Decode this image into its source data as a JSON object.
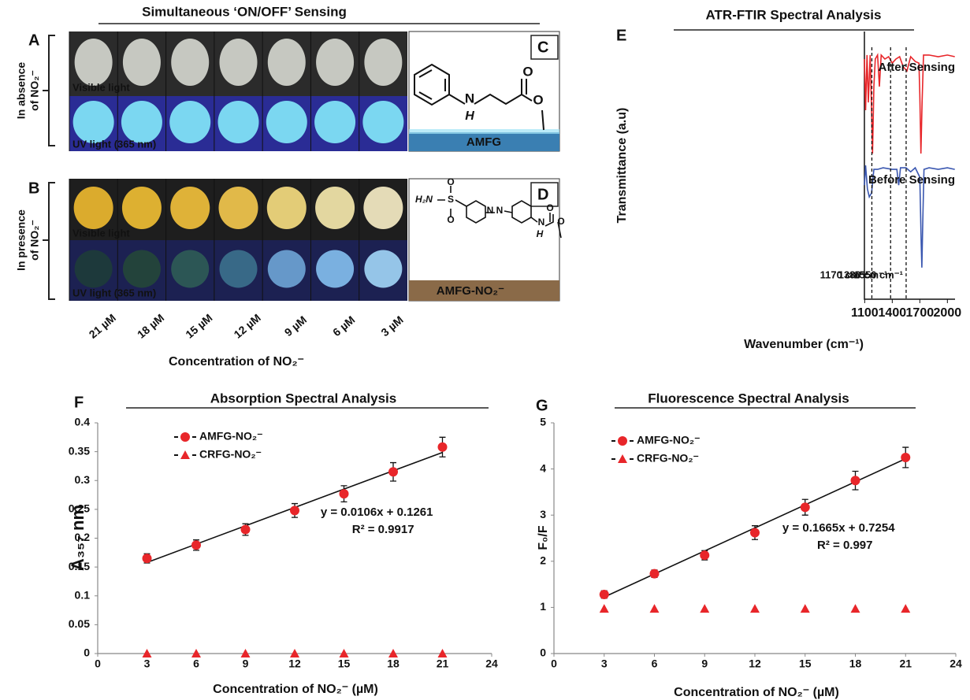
{
  "figure": {
    "panel_letters": [
      "A",
      "B",
      "C",
      "D",
      "E",
      "F",
      "G"
    ],
    "photo_title": "Simultaneous ‘ON/OFF’ Sensing",
    "row_labels": [
      [
        "In absence",
        "of NO₂⁻"
      ],
      [
        "In presence",
        "of NO₂⁻"
      ]
    ],
    "light_labels": [
      "Visible light",
      "UV light (365 nm)"
    ],
    "concentrations": [
      "21 µM",
      "18 µM",
      "15 µM",
      "12 µM",
      "9 µM",
      "6 µM",
      "3 µM"
    ],
    "concentration_label": "Concentration of NO₂⁻",
    "structures": {
      "c_name": "AMFG",
      "c_atoms": [
        "N",
        "H",
        "O",
        "O"
      ],
      "d_name": "AMFG-NO₂⁻",
      "d_atoms": [
        "H₂N",
        "S",
        "O",
        "O",
        "N",
        "N",
        "N",
        "H",
        "O",
        "O"
      ]
    }
  },
  "chart_data": [
    {
      "type": "line",
      "title": "ATR-FTIR Spectral Analysis",
      "x_label": "Wavenumber (cm⁻¹)",
      "y_label": "Transmittance (a.u)",
      "xlim": [
        1097,
        2083
      ],
      "xticks": [
        1100,
        1400,
        1700,
        2000
      ],
      "ylim": [
        0,
        100
      ],
      "series": [
        {
          "name": "After Sensing",
          "color": "#e8262a",
          "x": [
            1097,
            1110,
            1125,
            1140,
            1160,
            1175,
            1185,
            1200,
            1215,
            1240,
            1260,
            1280,
            1320,
            1360,
            1400,
            1440,
            1480,
            1520,
            1560,
            1600,
            1650,
            1690,
            1700,
            1712,
            1725,
            1740,
            1800,
            1900,
            2000,
            2080
          ],
          "values": [
            89.7,
            70.6,
            91.2,
            73.5,
            91.2,
            70.6,
            54.4,
            79.4,
            89.7,
            91.2,
            79.4,
            91.2,
            89.7,
            90.6,
            88.2,
            89.7,
            90.6,
            86.8,
            85.3,
            90.6,
            88.8,
            88.2,
            76.5,
            54.4,
            73.5,
            91.2,
            91.2,
            90.6,
            91.2,
            90.6
          ]
        },
        {
          "name": "Before Sensing",
          "color": "#3a57b0",
          "x": [
            1097,
            1110,
            1130,
            1150,
            1175,
            1200,
            1240,
            1300,
            1400,
            1450,
            1470,
            1490,
            1550,
            1600,
            1650,
            1700,
            1715,
            1722,
            1732,
            1745,
            1800,
            1900,
            2000,
            2080
          ],
          "values": [
            42.6,
            50.0,
            41.2,
            38.2,
            39.7,
            48.5,
            48.5,
            49.1,
            48.5,
            48.5,
            42.6,
            49.1,
            49.1,
            47.6,
            49.1,
            45.6,
            20.6,
            11.8,
            29.4,
            48.5,
            49.1,
            48.5,
            49.1,
            48.5
          ]
        }
      ],
      "markers": [
        {
          "value": 1178,
          "label": "1170 cm⁻¹"
        },
        {
          "value": 1382,
          "label": "1380 cm⁻¹"
        },
        {
          "value": 1551,
          "label": "1550 cm⁻¹"
        }
      ]
    },
    {
      "type": "scatter",
      "title": "Absorption Spectral Analysis",
      "x_label": "Concentration of NO₂⁻ (µM)",
      "y_label": "A₃₅₇ nm",
      "x": [
        3,
        6,
        9,
        12,
        15,
        18,
        21
      ],
      "xlim": [
        0,
        24
      ],
      "xticks": [
        0,
        3,
        6,
        9,
        12,
        15,
        18,
        21,
        24
      ],
      "ylim": [
        0,
        0.4
      ],
      "yticks": [
        0,
        0.05,
        0.1,
        0.15,
        0.2,
        0.25,
        0.3,
        0.35,
        0.4
      ],
      "series": [
        {
          "name": "AMFG-NO₂⁻",
          "color": "#e8262a",
          "marker": "circle",
          "values": [
            0.165,
            0.188,
            0.215,
            0.248,
            0.277,
            0.315,
            0.358
          ],
          "errors": [
            0.008,
            0.009,
            0.01,
            0.012,
            0.014,
            0.016,
            0.017
          ]
        },
        {
          "name": "CRFG-NO₂⁻",
          "color": "#e8262a",
          "marker": "triangle",
          "values": [
            0,
            0,
            0,
            0,
            0,
            0,
            0
          ]
        }
      ],
      "trendline": {
        "slope": 0.0106,
        "intercept": 0.1261,
        "equation": "y = 0.0106x + 0.1261",
        "r_squared": "R² = 0.9917"
      }
    },
    {
      "type": "scatter",
      "title": "Fluorescence Spectral Analysis",
      "x_label": "Concentration of NO₂⁻ (µM)",
      "y_label": "F₀/F",
      "x": [
        3,
        6,
        9,
        12,
        15,
        18,
        21
      ],
      "xlim": [
        0,
        24
      ],
      "xticks": [
        0,
        3,
        6,
        9,
        12,
        15,
        18,
        21,
        24
      ],
      "ylim": [
        0,
        5
      ],
      "yticks": [
        0,
        1,
        2,
        3,
        4,
        5
      ],
      "series": [
        {
          "name": "AMFG-NO₂⁻",
          "color": "#e8262a",
          "marker": "circle",
          "values": [
            1.28,
            1.73,
            2.13,
            2.62,
            3.17,
            3.75,
            4.25
          ],
          "errors": [
            0.08,
            0.08,
            0.1,
            0.15,
            0.17,
            0.2,
            0.22
          ]
        },
        {
          "name": "CRFG-NO₂⁻",
          "color": "#e8262a",
          "marker": "triangle",
          "values": [
            0.97,
            0.97,
            0.97,
            0.97,
            0.97,
            0.97,
            0.97
          ]
        }
      ],
      "trendline": {
        "slope": 0.1665,
        "intercept": 0.7254,
        "equation": "y = 0.1665x + 0.7254",
        "r_squared": "R² = 0.997"
      }
    }
  ]
}
